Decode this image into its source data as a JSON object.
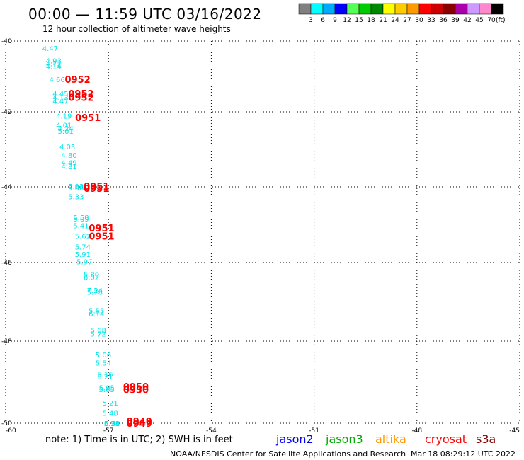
{
  "header": {
    "title": "00:00 — 11:59 UTC 03/16/2022",
    "subtitle": "12 hour collection of altimeter wave heights"
  },
  "colorbar": {
    "labels": [
      "3",
      "6",
      "9",
      "12",
      "15",
      "18",
      "21",
      "24",
      "27",
      "30",
      "33",
      "36",
      "39",
      "42",
      "45",
      "70"
    ],
    "unit": "(ft)",
    "colors": [
      "#808080",
      "#00ffff",
      "#00aaff",
      "#0000ff",
      "#55ff55",
      "#00cc00",
      "#008800",
      "#ffff00",
      "#ffcc00",
      "#ff9900",
      "#ff0000",
      "#cc0000",
      "#880000",
      "#aa00aa",
      "#cc99ff",
      "#ff88cc",
      "#000000"
    ]
  },
  "footer": {
    "note": "note:  1) Time is in UTC; 2) SWH is in feet",
    "satellites": [
      {
        "name": "jason2",
        "color": "#0000ff"
      },
      {
        "name": "jason3",
        "color": "#00aa00"
      },
      {
        "name": "altika",
        "color": "#ff9900"
      },
      {
        "name": "cryosat",
        "color": "#ff0000"
      },
      {
        "name": "s3a",
        "color": "#880000"
      }
    ],
    "credit": "NOAA/NESDIS Center for Satellite Applications and Research",
    "timestamp": "Mar 18 08:29:12 UTC 2022"
  },
  "chart_data": {
    "type": "scatter",
    "title": "00:00 — 11:59 UTC 03/16/2022",
    "subtitle": "12 hour collection of altimeter wave heights",
    "xlim": [
      -60,
      -45
    ],
    "ylim": [
      -50,
      -40
    ],
    "x_ticks": [
      -60,
      -57,
      -54,
      -51,
      -48,
      -45
    ],
    "y_ticks": [
      -40,
      -42,
      -44,
      -46,
      -48,
      -50
    ],
    "x_tick_labels": [
      "-60",
      "-57",
      "-54",
      "-51",
      "-48",
      "-45"
    ],
    "y_tick_labels": [
      "-40",
      "-42",
      "-44",
      "-46",
      "-48",
      "-50"
    ],
    "grid": true,
    "wave_heights": {
      "color": "#00e5ee",
      "points": [
        {
          "x": -58.7,
          "y": -40.2,
          "label": "4.47"
        },
        {
          "x": -58.6,
          "y": -40.55,
          "label": "4.93"
        },
        {
          "x": -58.6,
          "y": -40.63,
          "label": "4.72"
        },
        {
          "x": -58.6,
          "y": -40.71,
          "label": "4.14"
        },
        {
          "x": -58.5,
          "y": -41.08,
          "label": "4.66"
        },
        {
          "x": -58.4,
          "y": -41.48,
          "label": "4.45"
        },
        {
          "x": -58.4,
          "y": -41.59,
          "label": "4.13"
        },
        {
          "x": -58.4,
          "y": -41.69,
          "label": "4.47"
        },
        {
          "x": -58.3,
          "y": -42.1,
          "label": "4.19"
        },
        {
          "x": -58.3,
          "y": -42.35,
          "label": "4.01"
        },
        {
          "x": -58.25,
          "y": -42.43,
          "label": "4.24"
        },
        {
          "x": -58.25,
          "y": -42.51,
          "label": "5.01"
        },
        {
          "x": -58.2,
          "y": -42.92,
          "label": "4.03"
        },
        {
          "x": -58.15,
          "y": -43.15,
          "label": "4.80"
        },
        {
          "x": -58.15,
          "y": -43.35,
          "label": "4.49"
        },
        {
          "x": -58.15,
          "y": -43.45,
          "label": "4.81"
        },
        {
          "x": -57.95,
          "y": -43.98,
          "label": "5.93"
        },
        {
          "x": -57.95,
          "y": -44.02,
          "label": "5.08"
        },
        {
          "x": -57.95,
          "y": -44.25,
          "label": "5.33"
        },
        {
          "x": -57.8,
          "y": -44.8,
          "label": "5.58"
        },
        {
          "x": -57.8,
          "y": -44.84,
          "label": "5.09"
        },
        {
          "x": -57.8,
          "y": -45.02,
          "label": "5.41"
        },
        {
          "x": -57.75,
          "y": -45.3,
          "label": "5.62"
        },
        {
          "x": -57.75,
          "y": -45.58,
          "label": "5.74"
        },
        {
          "x": -57.75,
          "y": -45.78,
          "label": "5.91"
        },
        {
          "x": -57.7,
          "y": -45.97,
          "label": "5.97"
        },
        {
          "x": -57.5,
          "y": -46.3,
          "label": "5.80"
        },
        {
          "x": -57.5,
          "y": -46.37,
          "label": "6.02"
        },
        {
          "x": -57.4,
          "y": -46.7,
          "label": "7.24"
        },
        {
          "x": -57.4,
          "y": -46.75,
          "label": "5.78"
        },
        {
          "x": -57.35,
          "y": -47.22,
          "label": "5.55"
        },
        {
          "x": -57.35,
          "y": -47.3,
          "label": "6.14"
        },
        {
          "x": -57.3,
          "y": -47.72,
          "label": "5.68"
        },
        {
          "x": -57.3,
          "y": -47.81,
          "label": "5.72"
        },
        {
          "x": -57.15,
          "y": -48.33,
          "label": "5.06"
        },
        {
          "x": -57.15,
          "y": -48.53,
          "label": "5.54"
        },
        {
          "x": -57.1,
          "y": -48.8,
          "label": "5.16"
        },
        {
          "x": -57.1,
          "y": -48.86,
          "label": "6.21"
        },
        {
          "x": -57.05,
          "y": -49.13,
          "label": "5.95"
        },
        {
          "x": -57.05,
          "y": -49.17,
          "label": "5.65"
        },
        {
          "x": -56.95,
          "y": -49.5,
          "label": "5.21"
        },
        {
          "x": -56.95,
          "y": -49.75,
          "label": "5.48"
        },
        {
          "x": -56.9,
          "y": -50.03,
          "label": "5.94"
        },
        {
          "x": -56.9,
          "y": -50.09,
          "label": "5.71"
        },
        {
          "x": -56.9,
          "y": -50.17,
          "label": "6.28"
        }
      ]
    },
    "time_labels": {
      "color": "#ff0000",
      "points": [
        {
          "x": -57.9,
          "y": -41.08,
          "label": "0952"
        },
        {
          "x": -57.8,
          "y": -41.48,
          "label": "0952"
        },
        {
          "x": -57.8,
          "y": -41.59,
          "label": "0952"
        },
        {
          "x": -57.6,
          "y": -42.15,
          "label": "0951"
        },
        {
          "x": -57.35,
          "y": -43.98,
          "label": "0951"
        },
        {
          "x": -57.35,
          "y": -44.04,
          "label": "0951"
        },
        {
          "x": -57.2,
          "y": -45.08,
          "label": "0951"
        },
        {
          "x": -57.2,
          "y": -45.3,
          "label": "0951"
        },
        {
          "x": -56.2,
          "y": -49.1,
          "label": "0950"
        },
        {
          "x": -56.2,
          "y": -49.18,
          "label": "0950"
        },
        {
          "x": -56.1,
          "y": -49.95,
          "label": "0949"
        },
        {
          "x": -56.1,
          "y": -50.05,
          "label": "0949"
        }
      ]
    }
  }
}
